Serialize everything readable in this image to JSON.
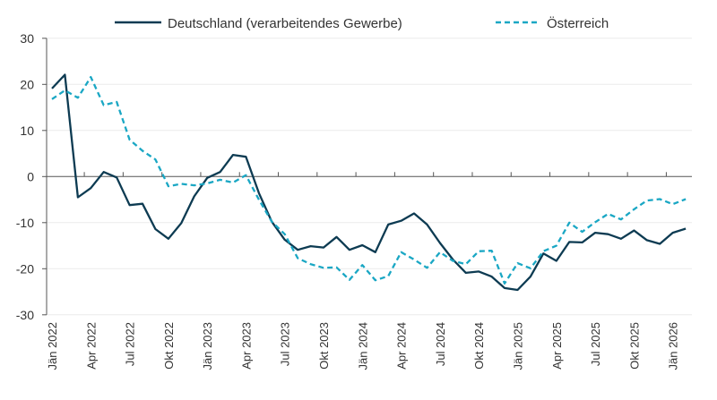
{
  "chart_data": {
    "type": "line",
    "title": "",
    "xlabel": "",
    "ylabel": "",
    "ylim": [
      -30,
      30
    ],
    "yticks": [
      30,
      20,
      10,
      0,
      -10,
      -20,
      -30
    ],
    "grid": true,
    "legend_position": "top",
    "x_start": "Jän 2022",
    "x_end": "Feb 2026",
    "tick_labels": [
      "Jän 2022",
      "Apr 2022",
      "Jul 2022",
      "Okt 2022",
      "Jän 2023",
      "Apr 2023",
      "Jul 2023",
      "Okt 2023",
      "Jän 2024",
      "Apr 2024",
      "Jul 2024",
      "Okt 2024",
      "Jän 2025",
      "Apr 2025",
      "Jul 2025",
      "Okt 2025",
      "Jän 2026"
    ],
    "series": [
      {
        "name": "Deutschland (verarbeitendes Gewerbe)",
        "color": "#0d3b52",
        "style": "solid",
        "values": [
          19.1,
          22.1,
          -4.5,
          -2.5,
          1.0,
          -0.2,
          -6.2,
          -5.9,
          -11.4,
          -13.5,
          -10.1,
          -4.3,
          -0.3,
          1.0,
          4.7,
          4.3,
          -3.6,
          -9.8,
          -13.7,
          -15.9,
          -15.1,
          -15.4,
          -13.1,
          -15.9,
          -14.9,
          -16.4,
          -10.4,
          -9.6,
          -8.0,
          -10.4,
          -14.4,
          -18.0,
          -20.9,
          -20.6,
          -21.7,
          -24.2,
          -24.6,
          -21.7,
          -16.7,
          -18.3,
          -14.2,
          -14.3,
          -12.2,
          -12.5,
          -13.5,
          -11.7,
          -13.8,
          -14.6,
          -12.2,
          -11.3
        ]
      },
      {
        "name": "Österreich",
        "color": "#1aa7c4",
        "style": "dashed",
        "values": [
          16.8,
          18.7,
          17.1,
          21.6,
          15.5,
          16.2,
          8.0,
          5.6,
          3.7,
          -2.1,
          -1.6,
          -1.9,
          -1.5,
          -0.7,
          -1.3,
          0.3,
          -5.0,
          -9.8,
          -12.5,
          -17.7,
          -19.0,
          -19.8,
          -19.7,
          -22.4,
          -19.2,
          -22.5,
          -21.6,
          -16.4,
          -18.0,
          -19.8,
          -16.4,
          -18.3,
          -19.0,
          -16.2,
          -16.1,
          -23.2,
          -18.8,
          -19.9,
          -16.2,
          -15.0,
          -10.0,
          -12.0,
          -9.9,
          -8.1,
          -9.3,
          -7.1,
          -5.2,
          -4.9,
          -6.0,
          -4.9
        ]
      }
    ]
  }
}
